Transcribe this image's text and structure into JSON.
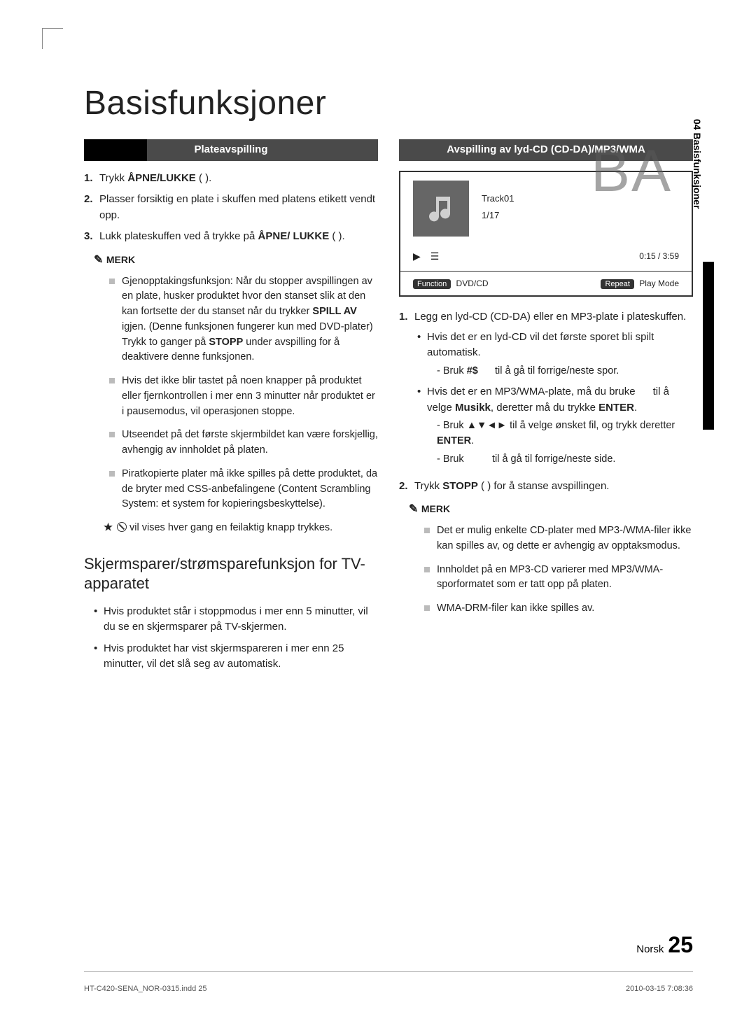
{
  "page": {
    "title": "Basisfunksjoner",
    "side_tab": "04  Basisfunksjoner",
    "lang_label": "Norsk",
    "page_number": "25",
    "watermark": "BA"
  },
  "left": {
    "header": "Plateavspilling",
    "steps": [
      {
        "n": "1.",
        "html": "Trykk <b>ÅPNE/LUKKE</b> (  )."
      },
      {
        "n": "2.",
        "html": "Plasser forsiktig en plate i skuffen med platens etikett vendt opp."
      },
      {
        "n": "3.",
        "html": "Lukk plateskuffen ved å trykke på <b>ÅPNE/ LUKKE</b> (  )."
      }
    ],
    "note_label": "MERK",
    "notes": [
      "Gjenopptakingsfunksjon: Når du stopper avspillingen av en plate, husker produktet hvor den stanset slik at den kan fortsette der du stanset når du trykker <b>SPILL AV</b> igjen. (Denne funksjonen fungerer kun med DVD-plater) Trykk to ganger på <b>STOPP</b> under avspilling for å deaktivere denne funksjonen.",
      "Hvis det ikke blir tastet på noen knapper på produktet eller fjernkontrollen i mer enn 3 minutter når produktet er i pausemodus, vil operasjonen stoppe.",
      "Utseendet på det første skjermbildet kan være forskjellig, avhengig av innholdet på platen.",
      "Piratkopierte plater må ikke spilles på dette produktet, da de bryter med CSS-anbefalingene (Content Scrambling System: et system for kopieringsbeskyttelse)."
    ],
    "star_note": " vil vises hver gang en feilaktig knapp trykkes.",
    "sub_heading": "Skjermsparer/strømsparefunksjon for TV-apparatet",
    "sub_bullets": [
      "Hvis produktet står i stoppmodus i mer enn 5 minutter, vil du se en skjermsparer på TV-skjermen.",
      "Hvis produktet har vist skjermspareren i mer enn 25 minutter, vil det slå seg av automatisk."
    ]
  },
  "right": {
    "header": "Avspilling av lyd-CD (CD-DA)/MP3/WMA",
    "display": {
      "track": "Track01",
      "count": "1/17",
      "time": "0:15  /  3:59",
      "func_label": "Function",
      "func_value": "DVD/CD",
      "repeat_label": "Repeat",
      "repeat_value": "Play Mode"
    },
    "steps": [
      {
        "n": "1.",
        "html": "Legg en lyd-CD (CD-DA) eller en MP3-plate i plateskuffen.",
        "subs": [
          {
            "html": "Hvis det er en lyd-CD vil det første sporet bli spilt automatisk.",
            "dash": [
              "- Bruk <b>#$</b>&nbsp;&nbsp;&nbsp;&nbsp;&nbsp;&nbsp;til å gå til forrige/neste spor."
            ]
          },
          {
            "html": "Hvis det er en MP3/WMA-plate, må du bruke &nbsp;&nbsp;&nbsp;&nbsp; til å velge <b>Musikk</b>, deretter må du trykke <b>ENTER</b>.",
            "dash": [
              "- Bruk ▲▼◄► til å velge ønsket fil, og trykk deretter <b>ENTER</b>.",
              "- Bruk &nbsp;&nbsp;&nbsp;&nbsp;&nbsp;&nbsp;&nbsp;&nbsp; til å gå til forrige/neste side."
            ]
          }
        ]
      },
      {
        "n": "2.",
        "html": "Trykk <b>STOPP</b> (  ) for å stanse avspillingen."
      }
    ],
    "note_label": "MERK",
    "notes": [
      "Det er mulig enkelte CD-plater med MP3-/WMA-filer ikke kan spilles av, og dette er avhengig av opptaksmodus.",
      "Innholdet på en MP3-CD varierer med MP3/WMA-sporformatet som er tatt opp på platen.",
      "WMA-DRM-filer kan ikke spilles av."
    ]
  },
  "footer": {
    "left": "HT-C420-SENA_NOR-0315.indd   25",
    "right": "2010-03-15    7:08:36"
  }
}
